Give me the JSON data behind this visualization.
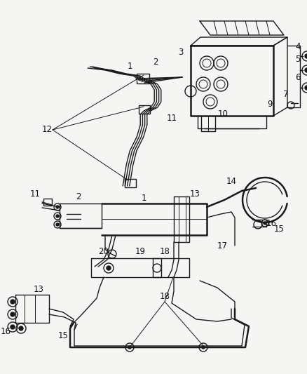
{
  "bg_color": "#f5f5f3",
  "line_color": "#1a1a1a",
  "label_color": "#111111",
  "fig_width": 4.38,
  "fig_height": 5.33,
  "dpi": 100,
  "label_fontsize": 8.5,
  "lw_main": 1.8,
  "lw_thin": 1.0,
  "lw_thick": 2.5
}
